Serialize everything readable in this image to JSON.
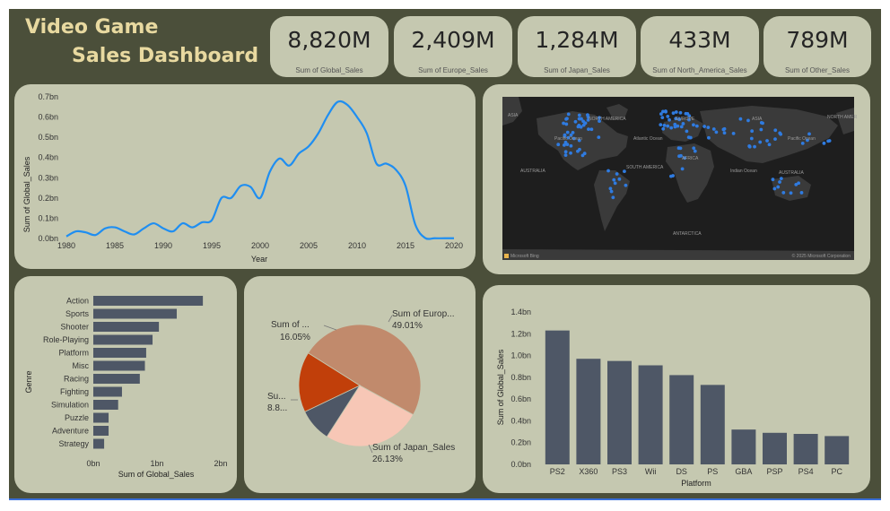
{
  "dashboard": {
    "title_line1": "Video Game",
    "title_line2": "Sales Dashboard"
  },
  "kpis": [
    {
      "value": "8,820M",
      "label": "Sum of Global_Sales"
    },
    {
      "value": "2,409M",
      "label": "Sum of Europe_Sales"
    },
    {
      "value": "1,284M",
      "label": "Sum of Japan_Sales"
    },
    {
      "value": "433M",
      "label": "Sum of North_America_Sales"
    },
    {
      "value": "789M",
      "label": "Sum of Other_Sales"
    }
  ],
  "map": {
    "attribution_left": "Microsoft Bing",
    "attribution_right": "© 2025 Microsoft Corporation",
    "labels": [
      "ASIA",
      "NORTH AMERICA",
      "EUROPE",
      "ASIA",
      "NORTH AMER",
      "Pacific Ocean",
      "Atlantic Ocean",
      "Pacific Ocean",
      "AUSTRALIA",
      "SOUTH AMERICA",
      "AFRICA",
      "Indian Ocean",
      "AUSTRALIA",
      "ANTARCTICA"
    ],
    "color_land": "#3a3a3a",
    "color_water": "#1e1e1e",
    "color_points": "#2f7be0"
  },
  "chart_data": [
    {
      "type": "line",
      "xlabel": "Year",
      "ylabel": "Sum of Global_Sales",
      "x": [
        1980,
        1981,
        1982,
        1983,
        1984,
        1985,
        1986,
        1987,
        1988,
        1989,
        1990,
        1991,
        1992,
        1993,
        1994,
        1995,
        1996,
        1997,
        1998,
        1999,
        2000,
        2001,
        2002,
        2003,
        2004,
        2005,
        2006,
        2007,
        2008,
        2009,
        2010,
        2011,
        2012,
        2013,
        2014,
        2015,
        2016,
        2017,
        2018,
        2019,
        2020
      ],
      "y": [
        0.01,
        0.035,
        0.03,
        0.017,
        0.05,
        0.055,
        0.035,
        0.02,
        0.05,
        0.075,
        0.05,
        0.035,
        0.075,
        0.055,
        0.08,
        0.09,
        0.2,
        0.2,
        0.26,
        0.255,
        0.2,
        0.33,
        0.395,
        0.36,
        0.42,
        0.455,
        0.52,
        0.61,
        0.675,
        0.66,
        0.6,
        0.52,
        0.37,
        0.37,
        0.34,
        0.26,
        0.07,
        0.003,
        0.001,
        0.001,
        0.001
      ],
      "yticks": [
        "0.0bn",
        "0.1bn",
        "0.2bn",
        "0.3bn",
        "0.4bn",
        "0.5bn",
        "0.6bn",
        "0.7bn"
      ],
      "ylim": [
        0,
        0.7
      ],
      "xticks": [
        1980,
        1985,
        1990,
        1995,
        2000,
        2005,
        2010,
        2015,
        2020
      ],
      "color": "#1f8ef1"
    },
    {
      "type": "bar",
      "orientation": "horizontal",
      "categories": [
        "Action",
        "Sports",
        "Shooter",
        "Role-Playing",
        "Platform",
        "Misc",
        "Racing",
        "Fighting",
        "Simulation",
        "Puzzle",
        "Adventure",
        "Strategy"
      ],
      "values": [
        1.72,
        1.31,
        1.03,
        0.93,
        0.83,
        0.81,
        0.73,
        0.45,
        0.39,
        0.24,
        0.24,
        0.17
      ],
      "xlabel": "Sum of Global_Sales",
      "ylabel": "Genre",
      "xticks": [
        "0bn",
        "1bn",
        "2bn"
      ],
      "xlim": [
        0,
        2
      ],
      "color": "#4e5766"
    },
    {
      "type": "pie",
      "slices": [
        {
          "label": "Sum of Europ...",
          "percent": "49.01%",
          "value": 49.01,
          "color": "#c18a6c"
        },
        {
          "label": "Sum of Japan_Sales",
          "percent": "26.13%",
          "value": 26.13,
          "color": "#f7c7b6"
        },
        {
          "label": "Su...",
          "percent": "8.8...",
          "value": 8.81,
          "color": "#4e5766"
        },
        {
          "label": "Sum of ...",
          "percent": "16.05%",
          "value": 16.05,
          "color": "#c13f0a"
        }
      ]
    },
    {
      "type": "bar",
      "orientation": "vertical",
      "categories": [
        "PS2",
        "X360",
        "PS3",
        "Wii",
        "DS",
        "PS",
        "GBA",
        "PSP",
        "PS4",
        "PC"
      ],
      "values": [
        1.23,
        0.97,
        0.95,
        0.91,
        0.82,
        0.73,
        0.32,
        0.29,
        0.28,
        0.26
      ],
      "xlabel": "Platform",
      "ylabel": "Sum of Global_Sales",
      "yticks": [
        "0.0bn",
        "0.2bn",
        "0.4bn",
        "0.6bn",
        "0.8bn",
        "1.0bn",
        "1.2bn",
        "1.4bn"
      ],
      "ylim": [
        0,
        1.4
      ],
      "color": "#4e5766"
    }
  ]
}
